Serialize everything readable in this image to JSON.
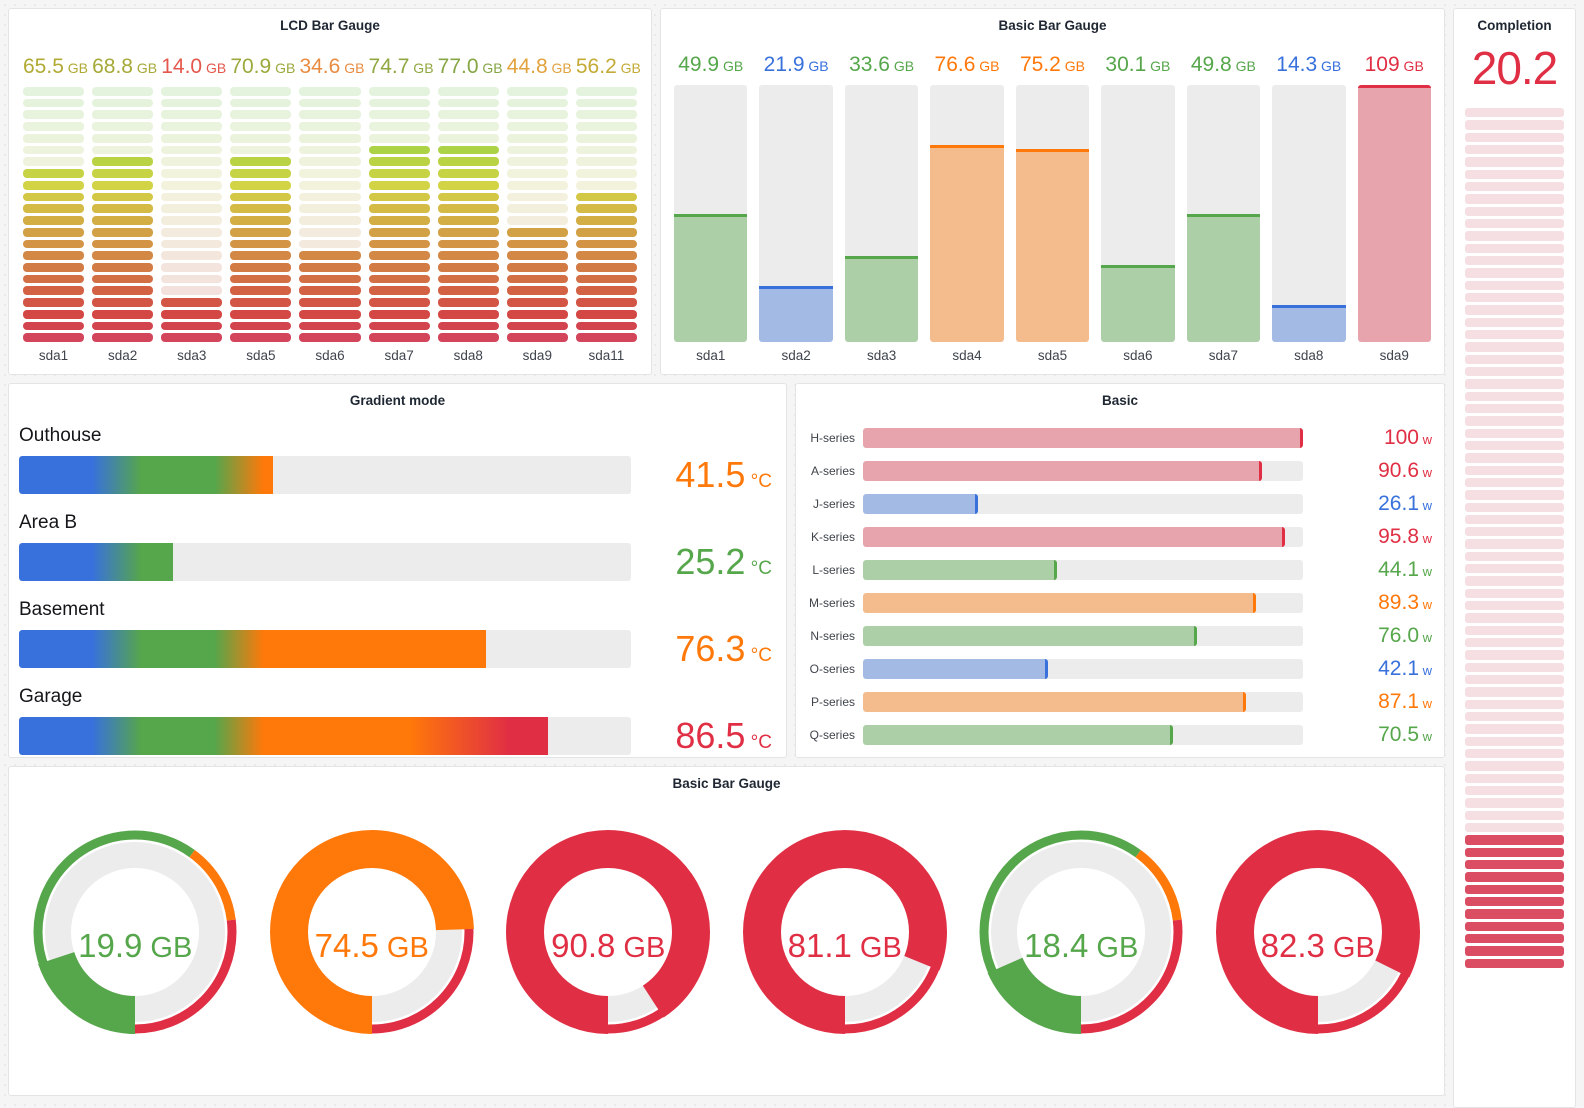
{
  "palette": {
    "blue": {
      "solid": "#3871dc",
      "pastel": "rgba(56,113,220,0.40)"
    },
    "green": {
      "solid": "#56a64b",
      "pastel": "rgba(86,166,75,0.42)"
    },
    "orange": {
      "solid": "#ff780a",
      "pastel": "rgba(255,120,10,0.42)"
    },
    "red": {
      "solid": "#e02f44",
      "pastel": "rgba(224,47,68,0.38)"
    }
  },
  "lcd_panel": {
    "title": "LCD Bar Gauge",
    "unit": "GB",
    "max": 100,
    "cells": 22,
    "items": [
      {
        "label": "sda1",
        "value": 65.5,
        "display": "65.5",
        "color_hex": "#b1aa34"
      },
      {
        "label": "sda2",
        "value": 68.8,
        "display": "68.8",
        "color_hex": "#a6a938"
      },
      {
        "label": "sda3",
        "value": 14.0,
        "display": "14.0",
        "color_hex": "#e4574d"
      },
      {
        "label": "sda5",
        "value": 70.9,
        "display": "70.9",
        "color_hex": "#9da93c"
      },
      {
        "label": "sda6",
        "value": 34.6,
        "display": "34.6",
        "color_hex": "#e88c42"
      },
      {
        "label": "sda7",
        "value": 74.7,
        "display": "74.7",
        "color_hex": "#90a841"
      },
      {
        "label": "sda8",
        "value": 77.0,
        "display": "77.0",
        "color_hex": "#86a645"
      },
      {
        "label": "sda9",
        "value": 44.8,
        "display": "44.8",
        "color_hex": "#e2a23d"
      },
      {
        "label": "sda11",
        "value": 56.2,
        "display": "56.2",
        "color_hex": "#c3ab36"
      }
    ]
  },
  "basic_vertical_panel": {
    "title": "Basic Bar Gauge",
    "unit": "GB",
    "max": 100,
    "items": [
      {
        "label": "sda1",
        "value": 49.9,
        "display": "49.9",
        "color": "green"
      },
      {
        "label": "sda2",
        "value": 21.9,
        "display": "21.9",
        "color": "blue"
      },
      {
        "label": "sda3",
        "value": 33.6,
        "display": "33.6",
        "color": "green"
      },
      {
        "label": "sda4",
        "value": 76.6,
        "display": "76.6",
        "color": "orange"
      },
      {
        "label": "sda5",
        "value": 75.2,
        "display": "75.2",
        "color": "orange"
      },
      {
        "label": "sda6",
        "value": 30.1,
        "display": "30.1",
        "color": "green"
      },
      {
        "label": "sda7",
        "value": 49.8,
        "display": "49.8",
        "color": "green"
      },
      {
        "label": "sda8",
        "value": 14.3,
        "display": "14.3",
        "color": "blue"
      },
      {
        "label": "sda9",
        "value": 109,
        "display": "109",
        "color": "red"
      }
    ]
  },
  "completion_panel": {
    "title": "Completion",
    "display": "20.2",
    "color": "red",
    "cells_visible": 70,
    "cells_lit": 11
  },
  "gradient_panel": {
    "title": "Gradient mode",
    "unit": "°C",
    "max": 100,
    "thresholds": [
      {
        "at": 0,
        "color": "blue"
      },
      {
        "at": 20,
        "color": "green"
      },
      {
        "at": 40,
        "color": "orange"
      },
      {
        "at": 80,
        "color": "red"
      }
    ],
    "items": [
      {
        "label": "Outhouse",
        "value": 41.5,
        "display": "41.5",
        "color": "orange"
      },
      {
        "label": "Area B",
        "value": 25.2,
        "display": "25.2",
        "color": "green"
      },
      {
        "label": "Basement",
        "value": 76.3,
        "display": "76.3",
        "color": "orange"
      },
      {
        "label": "Garage",
        "value": 86.5,
        "display": "86.5",
        "color": "red"
      }
    ]
  },
  "basic_horizontal_panel": {
    "title": "Basic",
    "unit": "w",
    "max": 100,
    "items": [
      {
        "label": "H-series",
        "value": 100,
        "display": "100",
        "color": "red"
      },
      {
        "label": "A-series",
        "value": 90.6,
        "display": "90.6",
        "color": "red"
      },
      {
        "label": "J-series",
        "value": 26.1,
        "display": "26.1",
        "color": "blue"
      },
      {
        "label": "K-series",
        "value": 95.8,
        "display": "95.8",
        "color": "red"
      },
      {
        "label": "L-series",
        "value": 44.1,
        "display": "44.1",
        "color": "green"
      },
      {
        "label": "M-series",
        "value": 89.3,
        "display": "89.3",
        "color": "orange"
      },
      {
        "label": "N-series",
        "value": 76.0,
        "display": "76.0",
        "color": "green"
      },
      {
        "label": "O-series",
        "value": 42.1,
        "display": "42.1",
        "color": "blue"
      },
      {
        "label": "P-series",
        "value": 87.1,
        "display": "87.1",
        "color": "orange"
      },
      {
        "label": "Q-series",
        "value": 70.5,
        "display": "70.5",
        "color": "green"
      }
    ]
  },
  "donut_panel": {
    "title": "Basic Bar Gauge",
    "unit": "GB",
    "max": 100,
    "band": [
      {
        "to": 60,
        "color": "green"
      },
      {
        "to": 73,
        "color": "orange"
      },
      {
        "to": 100,
        "color": "red"
      }
    ],
    "items": [
      {
        "value": 19.9,
        "display": "19.9",
        "color": "green"
      },
      {
        "value": 74.5,
        "display": "74.5",
        "color": "orange"
      },
      {
        "value": 90.8,
        "display": "90.8",
        "color": "red"
      },
      {
        "value": 81.1,
        "display": "81.1",
        "color": "red"
      },
      {
        "value": 18.4,
        "display": "18.4",
        "color": "green"
      },
      {
        "value": 82.3,
        "display": "82.3",
        "color": "red"
      }
    ]
  },
  "chart_data": [
    {
      "type": "bar",
      "title": "LCD Bar Gauge",
      "ylabel": "GB",
      "ylim": [
        0,
        100
      ],
      "categories": [
        "sda1",
        "sda2",
        "sda3",
        "sda5",
        "sda6",
        "sda7",
        "sda8",
        "sda9",
        "sda11"
      ],
      "values": [
        65.5,
        68.8,
        14.0,
        70.9,
        34.6,
        74.7,
        77.0,
        44.8,
        56.2
      ]
    },
    {
      "type": "bar",
      "title": "Basic Bar Gauge",
      "ylabel": "GB",
      "ylim": [
        0,
        100
      ],
      "categories": [
        "sda1",
        "sda2",
        "sda3",
        "sda4",
        "sda5",
        "sda6",
        "sda7",
        "sda8",
        "sda9"
      ],
      "values": [
        49.9,
        21.9,
        33.6,
        76.6,
        75.2,
        30.1,
        49.8,
        14.3,
        109
      ]
    },
    {
      "type": "bar",
      "title": "Completion",
      "values": [
        20.2
      ]
    },
    {
      "type": "bar",
      "title": "Gradient mode",
      "ylabel": "°C",
      "ylim": [
        0,
        100
      ],
      "categories": [
        "Outhouse",
        "Area B",
        "Basement",
        "Garage"
      ],
      "values": [
        41.5,
        25.2,
        76.3,
        86.5
      ]
    },
    {
      "type": "bar",
      "title": "Basic",
      "ylabel": "W",
      "ylim": [
        0,
        100
      ],
      "categories": [
        "H-series",
        "A-series",
        "J-series",
        "K-series",
        "L-series",
        "M-series",
        "N-series",
        "O-series",
        "P-series",
        "Q-series"
      ],
      "values": [
        100,
        90.6,
        26.1,
        95.8,
        44.1,
        89.3,
        76.0,
        42.1,
        87.1,
        70.5
      ]
    },
    {
      "type": "bar",
      "title": "Basic Bar Gauge",
      "ylabel": "GB",
      "ylim": [
        0,
        100
      ],
      "values": [
        19.9,
        74.5,
        90.8,
        81.1,
        18.4,
        82.3
      ]
    }
  ]
}
